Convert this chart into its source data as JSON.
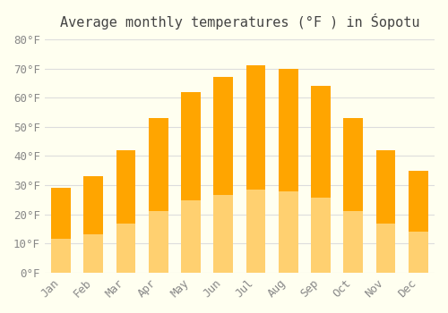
{
  "title": "Average monthly temperatures (°F ) in Śopotu",
  "months": [
    "Jan",
    "Feb",
    "Mar",
    "Apr",
    "May",
    "Jun",
    "Jul",
    "Aug",
    "Sep",
    "Oct",
    "Nov",
    "Dec"
  ],
  "values": [
    29,
    33,
    42,
    53,
    62,
    67,
    71,
    70,
    64,
    53,
    42,
    35
  ],
  "bar_color_top": "#FFA500",
  "bar_color_bottom": "#FFD070",
  "ylim": [
    0,
    80
  ],
  "yticks": [
    0,
    10,
    20,
    30,
    40,
    50,
    60,
    70,
    80
  ],
  "ytick_labels": [
    "0°F",
    "10°F",
    "20°F",
    "30°F",
    "40°F",
    "50°F",
    "60°F",
    "70°F",
    "80°F"
  ],
  "background_color": "#FFFFF0",
  "grid_color": "#DDDDDD",
  "title_fontsize": 11,
  "tick_fontsize": 9
}
